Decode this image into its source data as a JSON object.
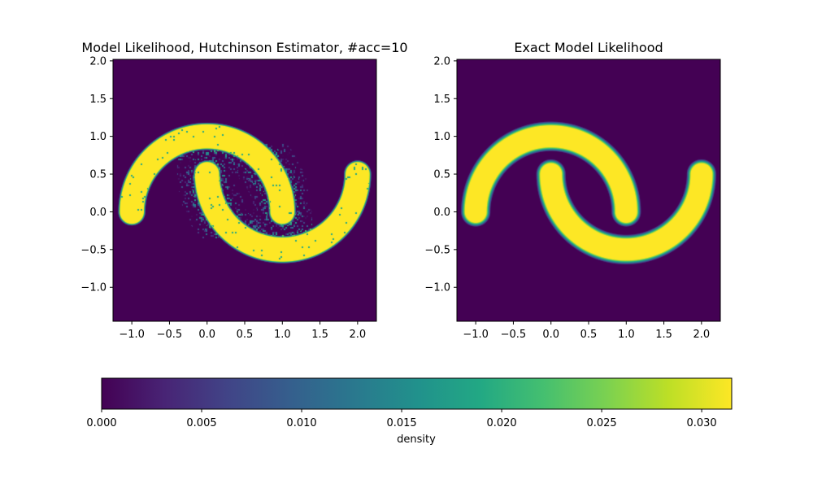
{
  "chart_data": [
    {
      "type": "heatmap",
      "title": "Model Likelihood, Hutchinson Estimator, #acc=10",
      "xlabel": "",
      "ylabel": "",
      "xlim": [
        -1.25,
        2.25
      ],
      "ylim": [
        -1.45,
        2.02
      ],
      "xticks": [
        -1.0,
        -0.5,
        0.0,
        0.5,
        1.0,
        1.5,
        2.0
      ],
      "xtick_labels": [
        "−1.0",
        "−0.5",
        "0.0",
        "0.5",
        "1.0",
        "1.5",
        "2.0"
      ],
      "yticks": [
        -1.0,
        -0.5,
        0.0,
        0.5,
        1.0,
        1.5,
        2.0
      ],
      "ytick_labels": [
        "−1.0",
        "−0.5",
        "0.0",
        "0.5",
        "1.0",
        "1.5",
        "2.0"
      ],
      "colormap": "viridis",
      "density_peak": 0.0315,
      "noisy": true,
      "shape": "two interleaving moons: upper arc centered (0,0) radius 1 from x=-1 to x=1, lower arc centered (1,0.5) radius 1 from x=0 to x=2"
    },
    {
      "type": "heatmap",
      "title": "Exact Model Likelihood",
      "xlabel": "",
      "ylabel": "",
      "xlim": [
        -1.25,
        2.25
      ],
      "ylim": [
        -1.45,
        2.02
      ],
      "xticks": [
        -1.0,
        -0.5,
        0.0,
        0.5,
        1.0,
        1.5,
        2.0
      ],
      "xtick_labels": [
        "−1.0",
        "−0.5",
        "0.0",
        "0.5",
        "1.0",
        "1.5",
        "2.0"
      ],
      "yticks": [
        -1.0,
        -0.5,
        0.0,
        0.5,
        1.0,
        1.5,
        2.0
      ],
      "ytick_labels": [
        "−1.0",
        "−0.5",
        "0.0",
        "0.5",
        "1.0",
        "1.5",
        "2.0"
      ],
      "colormap": "viridis",
      "density_peak": 0.0315,
      "noisy": false,
      "shape": "two interleaving moons: upper arc centered (0,0) radius 1 from x=-1 to x=1, lower arc centered (1,0.5) radius 1 from x=0 to x=2"
    }
  ],
  "colorbar": {
    "label": "density",
    "range": [
      0.0,
      0.0315
    ],
    "ticks": [
      0.0,
      0.005,
      0.01,
      0.015,
      0.02,
      0.025,
      0.03
    ],
    "tick_labels": [
      "0.000",
      "0.005",
      "0.010",
      "0.015",
      "0.020",
      "0.025",
      "0.030"
    ]
  },
  "colors": {
    "low": "#440154",
    "mid": "#21918c",
    "high": "#fde725"
  }
}
